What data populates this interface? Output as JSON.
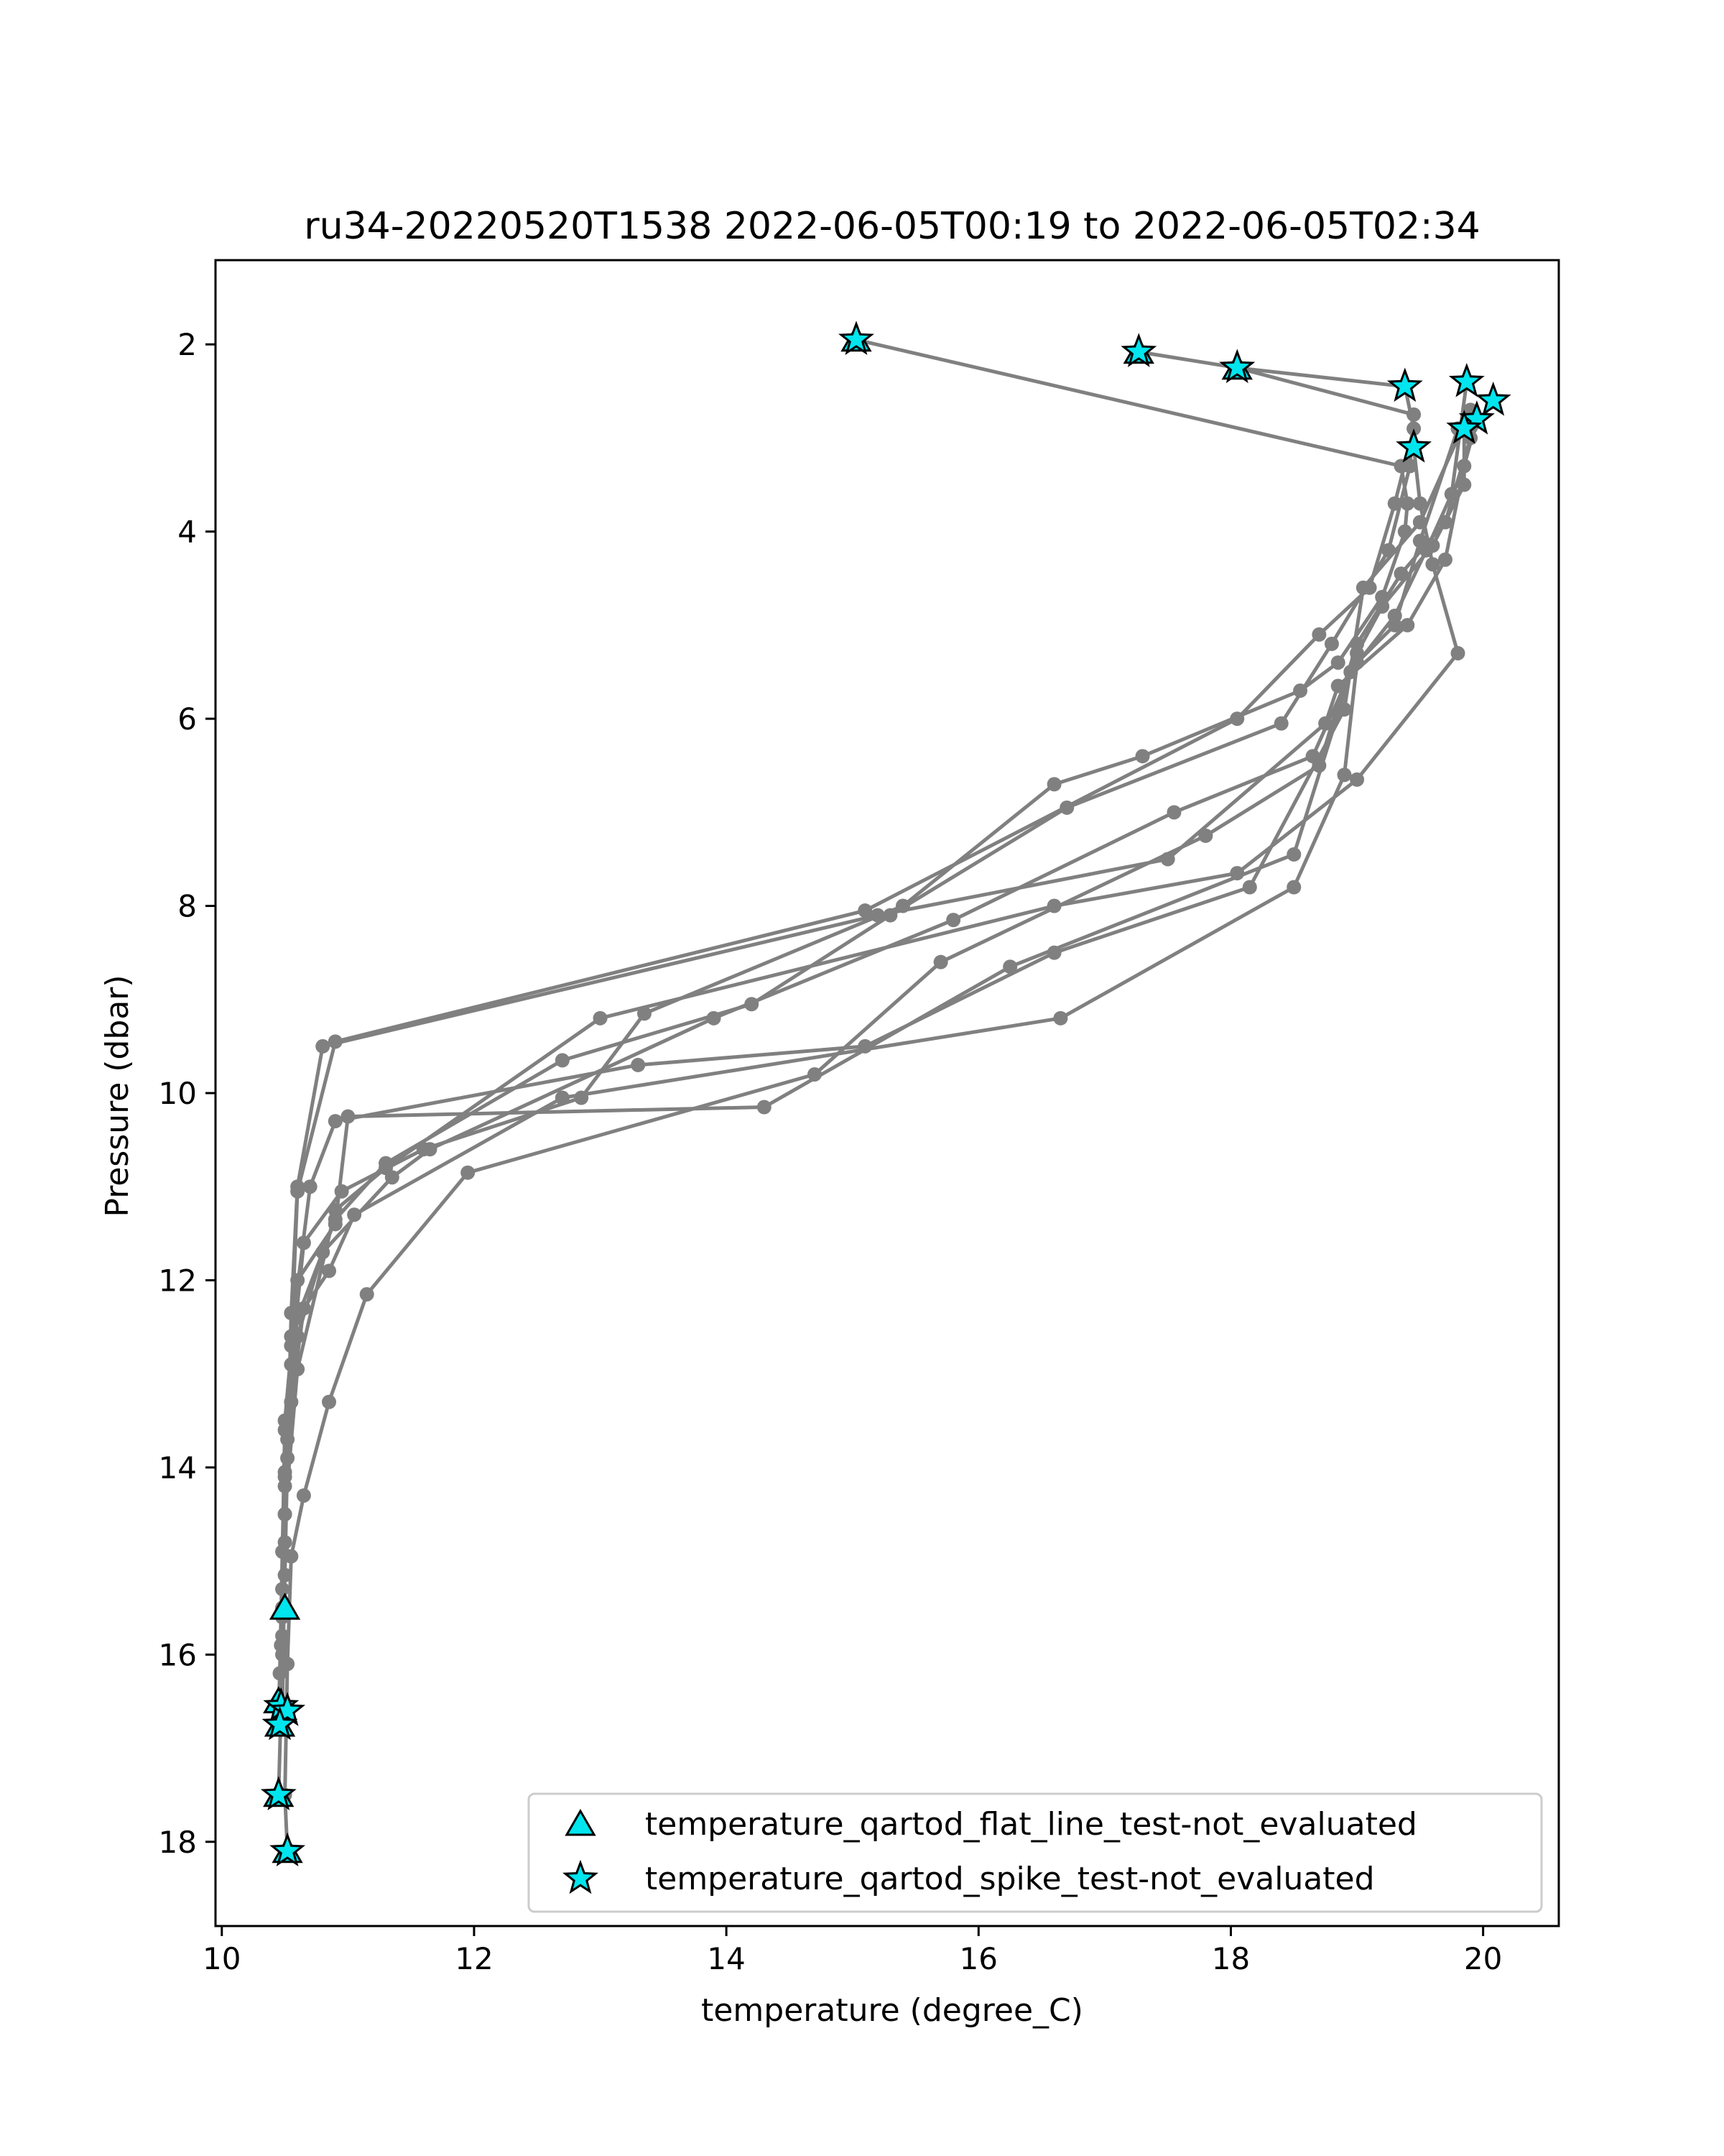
{
  "chart_data": {
    "type": "line",
    "title": "ru34-20220520T1538 2022-06-05T00:19 to 2022-06-05T02:34",
    "xlabel": "temperature (degree_C)",
    "ylabel": "Pressure (dbar)",
    "xlim": [
      9.95,
      20.6
    ],
    "ylim": [
      18.9,
      1.1
    ],
    "y_inverted": true,
    "xticks": [
      10,
      12,
      14,
      16,
      18,
      20
    ],
    "yticks": [
      2,
      4,
      6,
      8,
      10,
      12,
      14,
      16,
      18
    ],
    "grid": false,
    "legend_position": "lower-right",
    "colors": {
      "profile_line": "#808080",
      "flag_fill": "#00e5ee",
      "flag_edge": "#000000"
    },
    "series": [
      {
        "x": [
          15.03,
          19.35,
          19.4,
          19.38,
          19.2,
          18.85,
          18.55,
          17.3,
          16.6,
          15.4,
          13.35,
          12.85,
          11.6,
          10.95,
          10.65,
          10.55,
          10.5,
          10.48,
          10.47,
          10.45
        ],
        "y": [
          1.95,
          3.3,
          3.7,
          4.0,
          4.7,
          5.4,
          5.7,
          6.4,
          6.7,
          8.0,
          9.15,
          10.05,
          10.6,
          11.05,
          11.6,
          12.9,
          14.2,
          15.3,
          16.55,
          17.5
        ]
      },
      {
        "x": [
          17.27,
          18.05,
          19.45,
          19.42,
          19.25,
          18.8,
          18.4,
          16.7,
          15.3,
          14.2,
          12.7,
          11.3,
          10.9,
          10.6,
          10.5,
          10.48,
          10.46,
          10.45
        ],
        "y": [
          2.08,
          2.25,
          2.75,
          3.3,
          4.2,
          5.2,
          6.05,
          6.95,
          8.1,
          9.05,
          9.65,
          10.75,
          11.35,
          12.4,
          13.6,
          14.9,
          16.2,
          16.6
        ]
      },
      {
        "x": [
          18.05,
          19.38,
          19.45,
          19.3,
          19.1,
          18.7,
          18.05,
          15.1,
          10.9,
          10.6,
          10.55,
          10.5,
          10.48
        ],
        "y": [
          2.25,
          2.45,
          2.9,
          3.7,
          4.6,
          5.1,
          6.0,
          8.05,
          9.45,
          11.05,
          12.7,
          14.05,
          15.5
        ]
      },
      {
        "x": [
          19.87,
          19.75,
          19.55,
          19.3,
          18.95,
          18.65,
          17.55,
          15.8,
          13.9,
          11.65,
          11.35,
          10.8,
          10.6,
          10.52,
          10.5,
          10.48
        ],
        "y": [
          2.4,
          3.6,
          4.2,
          4.9,
          5.5,
          6.4,
          7.0,
          8.15,
          9.2,
          10.6,
          10.9,
          11.7,
          12.6,
          13.7,
          14.8,
          16.65
        ]
      },
      {
        "x": [
          20.08,
          19.9,
          19.7,
          19.35,
          19.0,
          18.7,
          17.8,
          15.7,
          14.7,
          11.95,
          11.15,
          10.85,
          10.65,
          10.55,
          10.52,
          10.5,
          10.52
        ],
        "y": [
          2.6,
          3.0,
          3.9,
          4.45,
          5.2,
          6.5,
          7.25,
          8.6,
          9.8,
          10.85,
          12.15,
          13.3,
          14.3,
          14.95,
          16.1,
          17.5,
          18.1
        ]
      },
      {
        "x": [
          19.95,
          19.85,
          19.7,
          19.4,
          18.85,
          18.75,
          17.5,
          15.2,
          10.8,
          10.6,
          10.55,
          10.52,
          10.5,
          10.48,
          10.46,
          10.47
        ],
        "y": [
          2.8,
          3.3,
          4.3,
          5.0,
          5.65,
          6.05,
          7.5,
          8.1,
          9.5,
          11.0,
          12.35,
          13.9,
          15.15,
          15.8,
          16.55,
          16.75
        ]
      },
      {
        "x": [
          19.85,
          19.85,
          19.6,
          19.2,
          19.0,
          18.5,
          16.25,
          14.3,
          11.0,
          10.9,
          10.6,
          10.5,
          10.47,
          10.45
        ],
        "y": [
          2.9,
          3.5,
          4.15,
          4.8,
          5.3,
          7.45,
          8.65,
          10.15,
          10.25,
          11.4,
          12.0,
          13.5,
          15.9,
          16.55
        ]
      },
      {
        "x": [
          19.8,
          19.5,
          19.3,
          19.0,
          18.9,
          18.5,
          16.65,
          12.7,
          11.05,
          10.85,
          10.65,
          10.55,
          10.5
        ],
        "y": [
          2.9,
          4.1,
          5.0,
          5.4,
          6.6,
          7.8,
          9.2,
          10.05,
          11.3,
          11.9,
          12.3,
          13.3,
          14.5
        ]
      },
      {
        "x": [
          19.45,
          19.5,
          19.6,
          19.8,
          19.0,
          18.05,
          16.6,
          13.0,
          11.3,
          10.9,
          10.6,
          10.5,
          10.48
        ],
        "y": [
          3.1,
          3.7,
          4.35,
          5.3,
          6.65,
          7.65,
          8.0,
          9.2,
          10.8,
          11.25,
          12.95,
          14.5,
          16.0
        ]
      },
      {
        "x": [
          19.9,
          19.5,
          19.05,
          18.9,
          18.15,
          16.6,
          15.1,
          13.3,
          10.9,
          10.7,
          10.55,
          10.5,
          10.48
        ],
        "y": [
          2.7,
          3.9,
          4.6,
          5.9,
          7.8,
          8.5,
          9.5,
          9.7,
          10.3,
          11.0,
          12.6,
          14.1,
          15.6
        ]
      }
    ],
    "flags": [
      {
        "name": "temperature_qartod_flat_line_test-not_evaluated",
        "marker": "triangle",
        "points": [
          [
            15.03,
            1.95
          ],
          [
            17.27,
            2.08
          ],
          [
            18.05,
            2.25
          ],
          [
            10.5,
            15.5
          ],
          [
            10.45,
            16.5
          ],
          [
            10.46,
            16.75
          ],
          [
            10.45,
            17.5
          ],
          [
            10.52,
            18.1
          ]
        ]
      },
      {
        "name": "temperature_qartod_spike_test-not_evaluated",
        "marker": "star",
        "points": [
          [
            15.03,
            1.95
          ],
          [
            17.27,
            2.08
          ],
          [
            18.05,
            2.25
          ],
          [
            19.38,
            2.45
          ],
          [
            19.87,
            2.4
          ],
          [
            20.08,
            2.6
          ],
          [
            19.95,
            2.8
          ],
          [
            19.85,
            2.9
          ],
          [
            19.45,
            3.1
          ],
          [
            10.47,
            16.55
          ],
          [
            10.52,
            16.6
          ],
          [
            10.46,
            16.75
          ],
          [
            10.45,
            17.5
          ],
          [
            10.52,
            18.1
          ]
        ]
      }
    ]
  }
}
